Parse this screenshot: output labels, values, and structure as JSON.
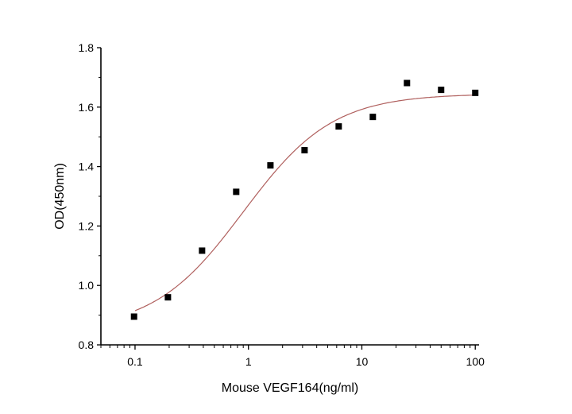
{
  "chart_data": {
    "type": "scatter",
    "title": "",
    "xlabel": "Mouse VEGF164(ng/ml)",
    "ylabel": "OD(450nm)",
    "x_scale": "log",
    "xlim": [
      0.05,
      108
    ],
    "ylim": [
      0.8,
      1.8
    ],
    "x_ticks": [
      0.1,
      1,
      10,
      100
    ],
    "x_tick_labels": [
      "0.1",
      "1",
      "10",
      "100"
    ],
    "y_ticks": [
      0.8,
      1.0,
      1.2,
      1.4,
      1.6,
      1.8
    ],
    "y_tick_labels": [
      "0.8",
      "1.0",
      "1.2",
      "1.4",
      "1.6",
      "1.8"
    ],
    "grid": false,
    "legend": "none",
    "series": [
      {
        "marker": "square",
        "color": "#000000",
        "x": [
          0.098,
          0.195,
          0.39,
          0.78,
          1.5625,
          3.125,
          6.25,
          12.5,
          25,
          50,
          100
        ],
        "y": [
          0.895,
          0.96,
          1.117,
          1.315,
          1.404,
          1.455,
          1.535,
          1.567,
          1.681,
          1.658,
          1.648
        ]
      }
    ],
    "fit_curve": {
      "type": "four-parameter logistic",
      "color": "#b0605e"
    }
  }
}
